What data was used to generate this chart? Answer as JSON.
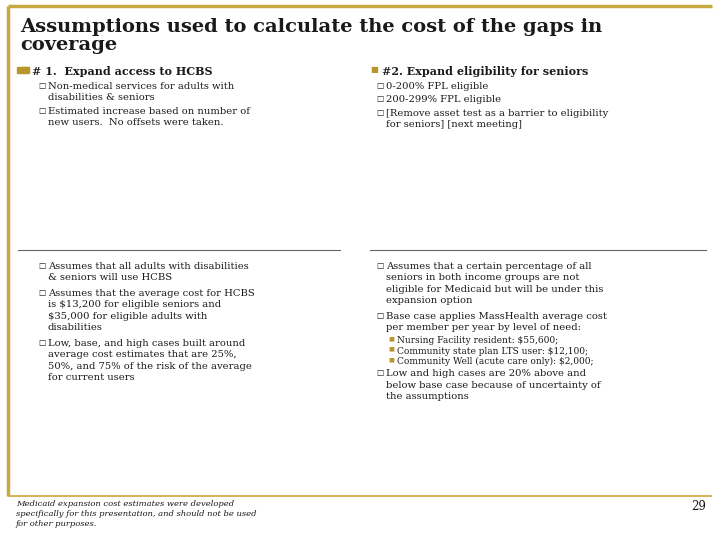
{
  "title_line1": "Assumptions used to calculate the cost of the gaps in",
  "title_line2": "coverage",
  "bg_color": "#ffffff",
  "border_color": "#c8a840",
  "title_color": "#1a1a1a",
  "bullet_color": "#b8962e",
  "text_color": "#1a1a1a",
  "footer_text": "Medicaid expansion cost estimates were developed\nspecifically for this presentation, and should not be used\nfor other purposes.",
  "page_number": "29",
  "left_col": {
    "header": "# 1.  Expand access to HCBS",
    "sub_bullets": [
      "Non-medical services for adults with\ndisabilities & seniors",
      "Estimated increase based on number of\nnew users.  No offsets were taken."
    ],
    "lower_bullets": [
      "Assumes that all adults with disabilities\n& seniors will use HCBS",
      "Assumes that the average cost for HCBS\nis $13,200 for eligible seniors and\n$35,000 for eligible adults with\ndisabilities",
      "Low, base, and high cases built around\naverage cost estimates that are 25%,\n50%, and 75% of the risk of the average\nfor current users"
    ]
  },
  "right_col": {
    "header": "#2. Expand eligibility for seniors",
    "sub_bullets": [
      "0-200% FPL eligible",
      "200-299% FPL eligible",
      "[Remove asset test as a barrier to eligibility\nfor seniors] [next meeting]"
    ],
    "lower_bullets": [
      "Assumes that a certain percentage of all\nseniors in both income groups are not\neligible for Medicaid but will be under this\nexpansion option",
      "Base case applies MassHealth average cost\nper member per year by level of need:",
      "Low and high cases are 20% above and\nbelow base case because of uncertainty of\nthe assumptions"
    ],
    "sub_sub_bullets": [
      "Nursing Facility resident: $55,600;",
      "Community state plan LTS user: $12,100;",
      "Community Well (acute care only): $2,000;"
    ]
  }
}
